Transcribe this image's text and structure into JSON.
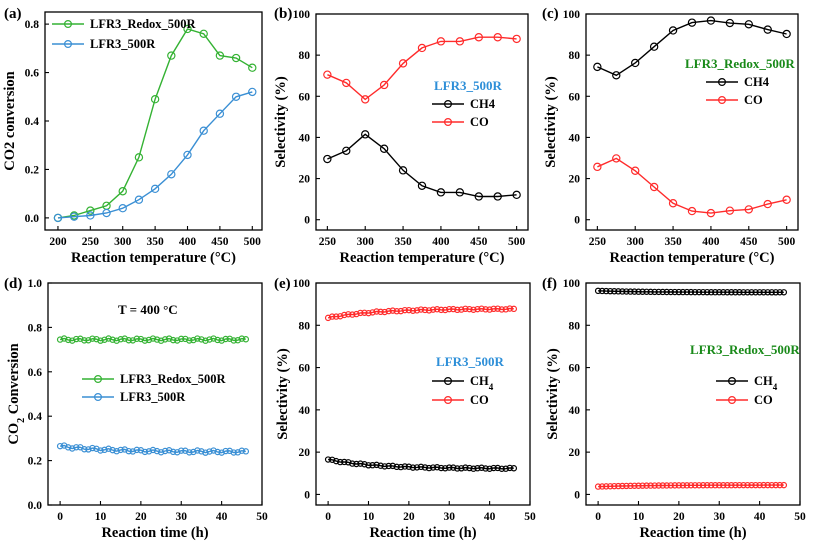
{
  "panel_labels": [
    "(a)",
    "(b)",
    "(c)",
    "(d)",
    "(e)",
    "(f)"
  ],
  "colors": {
    "green": "#34b233",
    "blue": "#3a8fd4",
    "black": "#000000",
    "red": "#ff2b2b",
    "green_text": "#1a8a1a",
    "blue_text": "#2e8fd8"
  },
  "chart_data": [
    {
      "id": "a",
      "type": "line",
      "label": "(a)",
      "xlabel": "Reaction temperature (°C)",
      "ylabel": "CO2 conversion",
      "xlim": [
        180,
        515
      ],
      "ylim": [
        -0.05,
        0.85
      ],
      "xticks": [
        200,
        250,
        300,
        350,
        400,
        450,
        500
      ],
      "yticks": [
        0.0,
        0.2,
        0.4,
        0.6,
        0.8
      ],
      "yticklabels": [
        "0.0",
        "0.2",
        "0.4",
        "0.6",
        "0.8"
      ],
      "legend": "top-left",
      "series": [
        {
          "name": "LFR3_Redox_500R",
          "color": "#34b233",
          "x": [
            200,
            225,
            250,
            275,
            300,
            325,
            350,
            375,
            400,
            425,
            450,
            475,
            500
          ],
          "values": [
            0.0,
            0.01,
            0.03,
            0.05,
            0.11,
            0.25,
            0.49,
            0.67,
            0.78,
            0.76,
            0.67,
            0.66,
            0.62
          ]
        },
        {
          "name": "LFR3_500R",
          "color": "#3a8fd4",
          "x": [
            200,
            225,
            250,
            275,
            300,
            325,
            350,
            375,
            400,
            425,
            450,
            475,
            500
          ],
          "values": [
            0.0,
            0.005,
            0.01,
            0.02,
            0.04,
            0.075,
            0.12,
            0.18,
            0.26,
            0.36,
            0.43,
            0.5,
            0.52
          ]
        }
      ]
    },
    {
      "id": "b",
      "type": "line",
      "label": "(b)",
      "xlabel": "Reaction temperature (°C)",
      "ylabel": "Selectivity (%)",
      "xlim": [
        235,
        515
      ],
      "ylim": [
        -5,
        100
      ],
      "xticks": [
        250,
        300,
        350,
        400,
        450,
        500
      ],
      "yticks": [
        0,
        20,
        40,
        60,
        80,
        100
      ],
      "annotation": "LFR3_500R",
      "legend": "right-middle",
      "series": [
        {
          "name": "CH4",
          "color": "#000000",
          "x": [
            250,
            275,
            300,
            325,
            350,
            375,
            400,
            425,
            450,
            475,
            500
          ],
          "values": [
            29.5,
            33.5,
            41.5,
            34.5,
            24,
            16.5,
            13.3,
            13.3,
            11.3,
            11.3,
            12.1
          ]
        },
        {
          "name": "CO",
          "color": "#ff2b2b",
          "x": [
            250,
            275,
            300,
            325,
            350,
            375,
            400,
            425,
            450,
            475,
            500
          ],
          "values": [
            70.5,
            66.5,
            58.5,
            65.5,
            76,
            83.5,
            86.7,
            86.7,
            88.7,
            88.7,
            87.9
          ]
        }
      ]
    },
    {
      "id": "c",
      "type": "line",
      "label": "(c)",
      "xlabel": "Reaction temperature (°C)",
      "ylabel": "Selectivity (%)",
      "xlim": [
        235,
        515
      ],
      "ylim": [
        -5,
        100
      ],
      "xticks": [
        250,
        300,
        350,
        400,
        450,
        500
      ],
      "yticks": [
        0,
        20,
        40,
        60,
        80,
        100
      ],
      "annotation": "LFR3_Redox_500R",
      "legend": "right-upper",
      "series": [
        {
          "name": "CH4",
          "color": "#000000",
          "x": [
            250,
            275,
            300,
            325,
            350,
            375,
            400,
            425,
            450,
            475,
            500
          ],
          "values": [
            74.3,
            70.2,
            76.2,
            84.1,
            92.0,
            95.8,
            96.8,
            95.6,
            95.0,
            92.4,
            90.3
          ]
        },
        {
          "name": "CO",
          "color": "#ff2b2b",
          "x": [
            250,
            275,
            300,
            325,
            350,
            375,
            400,
            425,
            450,
            475,
            500
          ],
          "values": [
            25.7,
            29.8,
            23.8,
            15.9,
            8.0,
            4.2,
            3.2,
            4.4,
            5.0,
            7.6,
            9.7
          ]
        }
      ]
    },
    {
      "id": "d",
      "type": "line",
      "label": "(d)",
      "xlabel": "Reaction  time (h)",
      "ylabel_main": "CO",
      "ylabel_sub": "2",
      "ylabel_rest": " Conversion",
      "xlim": [
        -3,
        50
      ],
      "ylim": [
        0.0,
        1.0
      ],
      "xticks": [
        0,
        10,
        20,
        30,
        40,
        50
      ],
      "yticks": [
        0.0,
        0.2,
        0.4,
        0.6,
        0.8,
        1.0
      ],
      "yticklabels": [
        "0.0",
        "0.2",
        "0.4",
        "0.6",
        "0.8",
        "1.0"
      ],
      "annotation": "T = 400 °C",
      "legend": "right-middle",
      "series": [
        {
          "name": "LFR3_Redox_500R",
          "color": "#34b233",
          "x_start": 0,
          "x_end": 46,
          "n": 47,
          "start": 0.745,
          "end": 0.745
        },
        {
          "name": "LFR3_500R",
          "color": "#3a8fd4",
          "x_start": 0,
          "x_end": 46,
          "n": 47,
          "start": 0.265,
          "end": 0.24
        }
      ]
    },
    {
      "id": "e",
      "type": "line",
      "label": "(e)",
      "xlabel": "Reaction time (h)",
      "ylabel": "Selectivity (%)",
      "xlim": [
        -3,
        50
      ],
      "ylim": [
        -5,
        100
      ],
      "xticks": [
        0,
        10,
        20,
        30,
        40,
        50
      ],
      "yticks": [
        0,
        20,
        40,
        60,
        80,
        100
      ],
      "annotation": "LFR3_500R",
      "legend": "right-middle",
      "legend_sub": "4",
      "series": [
        {
          "name": "CH",
          "color": "#000000",
          "x_start": 0,
          "x_end": 46,
          "n": 47,
          "start": 16.5,
          "end": 12.3
        },
        {
          "name": "CO",
          "color": "#ff2b2b",
          "x_start": 0,
          "x_end": 46,
          "n": 47,
          "start": 83.5,
          "end": 87.7
        }
      ]
    },
    {
      "id": "f",
      "type": "line",
      "label": "(f)",
      "xlabel": "Reaction time (h)",
      "ylabel": "Selectivity (%)",
      "xlim": [
        -3,
        50
      ],
      "ylim": [
        -5,
        100
      ],
      "xticks": [
        0,
        10,
        20,
        30,
        40,
        50
      ],
      "yticks": [
        0,
        20,
        40,
        60,
        80,
        100
      ],
      "annotation": "LFR3_Redox_500R",
      "legend": "right-middle",
      "legend_sub": "4",
      "series": [
        {
          "name": "CH",
          "color": "#000000",
          "x_start": 0,
          "x_end": 46,
          "n": 47,
          "start": 96.3,
          "end": 95.6
        },
        {
          "name": "CO",
          "color": "#ff2b2b",
          "x_start": 0,
          "x_end": 46,
          "n": 47,
          "start": 3.7,
          "end": 4.4
        }
      ]
    }
  ]
}
